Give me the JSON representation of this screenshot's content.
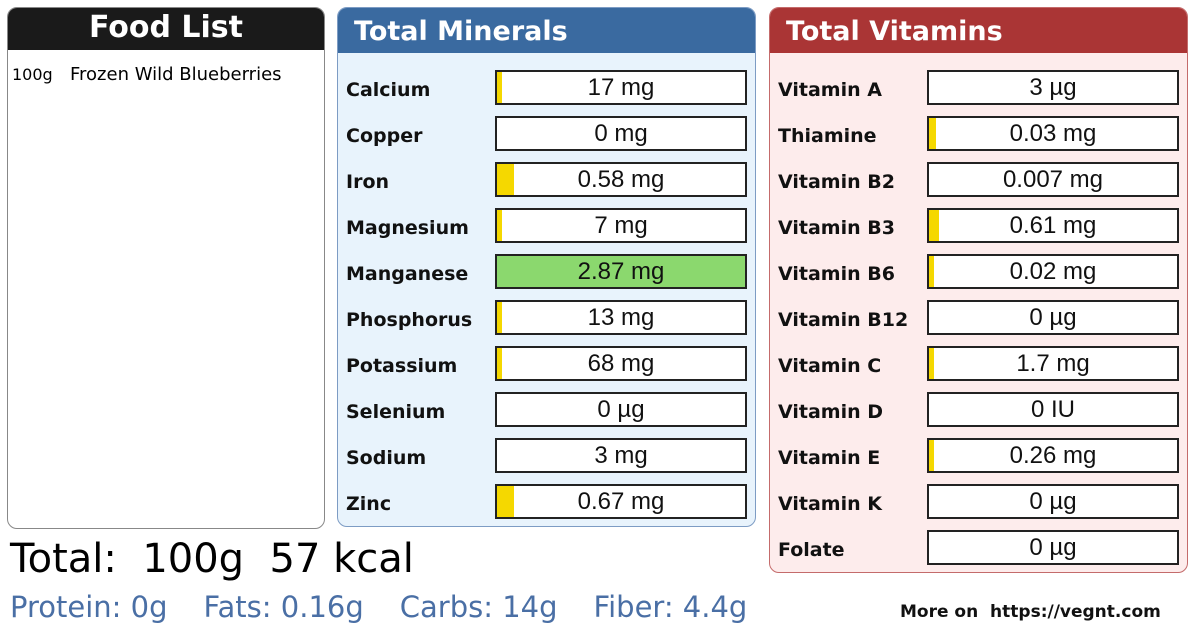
{
  "food_list": {
    "title": "Food List",
    "items": [
      {
        "qty": "100g",
        "name": "Frozen Wild Blueberries"
      }
    ]
  },
  "minerals": {
    "title": "Total Minerals",
    "items": [
      {
        "label": "Calcium",
        "value": "17 mg",
        "fill": 0.02
      },
      {
        "label": "Copper",
        "value": "0 mg",
        "fill": 0.0
      },
      {
        "label": "Iron",
        "value": "0.58 mg",
        "fill": 0.07
      },
      {
        "label": "Magnesium",
        "value": "7 mg",
        "fill": 0.02
      },
      {
        "label": "Manganese",
        "value": "2.87 mg",
        "fill": 1.0
      },
      {
        "label": "Phosphorus",
        "value": "13 mg",
        "fill": 0.02
      },
      {
        "label": "Potassium",
        "value": "68 mg",
        "fill": 0.02
      },
      {
        "label": "Selenium",
        "value": "0 µg",
        "fill": 0.0
      },
      {
        "label": "Sodium",
        "value": "3 mg",
        "fill": 0.0
      },
      {
        "label": "Zinc",
        "value": "0.67 mg",
        "fill": 0.07
      }
    ]
  },
  "vitamins": {
    "title": "Total Vitamins",
    "items": [
      {
        "label": "Vitamin A",
        "value": "3 µg",
        "fill": 0.0
      },
      {
        "label": "Thiamine",
        "value": "0.03 mg",
        "fill": 0.03
      },
      {
        "label": "Vitamin B2",
        "value": "0.007 mg",
        "fill": 0.0
      },
      {
        "label": "Vitamin B3",
        "value": "0.61 mg",
        "fill": 0.04
      },
      {
        "label": "Vitamin B6",
        "value": "0.02 mg",
        "fill": 0.02
      },
      {
        "label": "Vitamin B12",
        "value": "0 µg",
        "fill": 0.0
      },
      {
        "label": "Vitamin C",
        "value": "1.7 mg",
        "fill": 0.02
      },
      {
        "label": "Vitamin D",
        "value": "0 IU",
        "fill": 0.0
      },
      {
        "label": "Vitamin E",
        "value": "0.26 mg",
        "fill": 0.02
      },
      {
        "label": "Vitamin K",
        "value": "0 µg",
        "fill": 0.0
      },
      {
        "label": "Folate",
        "value": "0 µg",
        "fill": 0.0
      }
    ]
  },
  "totals": {
    "line": "Total:  100g  57 kcal",
    "protein": "Protein: 0g",
    "fats": "Fats: 0.16g",
    "carbs": "Carbs: 14g",
    "fiber": "Fiber: 4.4g"
  },
  "footer": {
    "more": "More on  https://vegnt.com"
  },
  "colors": {
    "minerals_header": "#3a6aa0",
    "vitamins_header": "#aa3535",
    "bar_fill": "#f5d800",
    "bar_full": "#8bd86e",
    "macros_text": "#4a6fa5"
  }
}
